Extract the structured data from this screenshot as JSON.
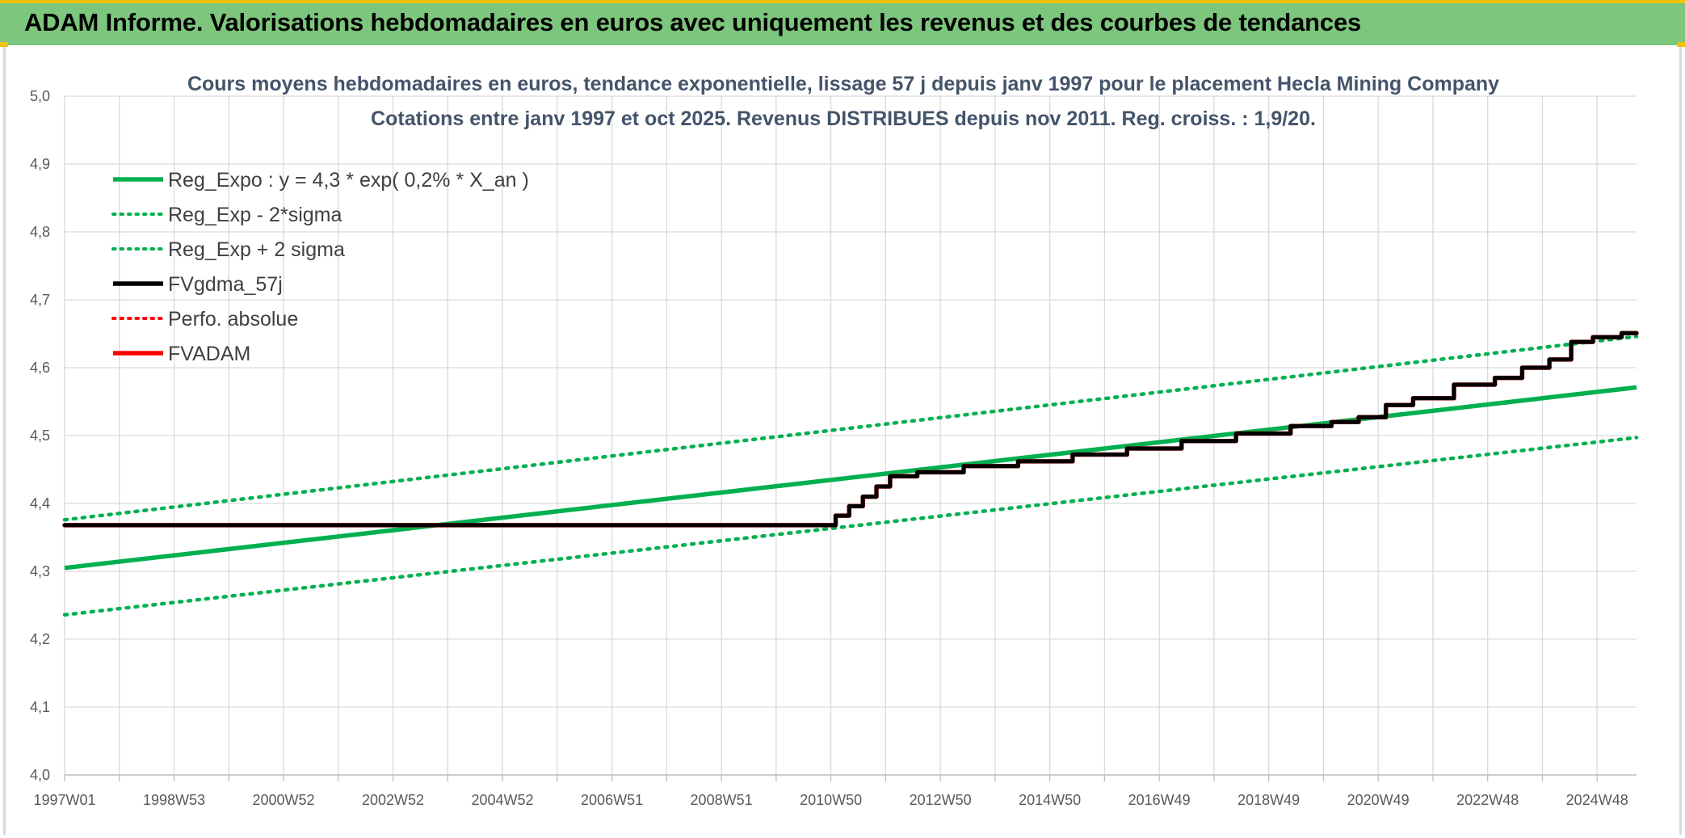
{
  "header": {
    "title": "ADAM Informe. Valorisations hebdomadaires en euros avec uniquement les revenus et des courbes de tendances"
  },
  "chart_data": {
    "type": "line",
    "title": "Cours moyens hebdomadaires en euros, tendance exponentielle, lissage 57 j depuis janv 1997 pour le placement Hecla Mining Company",
    "subtitle": "Cotations entre janv 1997 et oct 2025. Revenus DISTRIBUES depuis nov 2011. Reg. croiss. : 1,9/20.",
    "xlabel": "",
    "ylabel": "",
    "x_tick_labels": [
      "1997W01",
      "1998W53",
      "2000W52",
      "2002W52",
      "2004W52",
      "2006W51",
      "2008W51",
      "2010W50",
      "2012W50",
      "2014W50",
      "2016W49",
      "2018W49",
      "2020W49",
      "2022W48",
      "2024W48"
    ],
    "y_tick_labels": [
      "4,0",
      "4,1",
      "4,2",
      "4,3",
      "4,4",
      "4,5",
      "4,6",
      "4,7",
      "4,8",
      "4,9",
      "5,0"
    ],
    "ylim": [
      4.0,
      5.0
    ],
    "xlim": [
      1997.0,
      2025.85
    ],
    "grid": true,
    "legend_position": "top-left",
    "series": [
      {
        "name": "Reg_Expo : y = 4,3 * exp( 0,2% *  X_an )",
        "color": "#00b050",
        "style": "solid",
        "x": [
          1997.0,
          2025.85
        ],
        "y": [
          4.305,
          4.571
        ]
      },
      {
        "name": "Reg_Exp - 2*sigma",
        "color": "#00b050",
        "style": "dotted",
        "x": [
          1997.0,
          2025.85
        ],
        "y": [
          4.236,
          4.497
        ]
      },
      {
        "name": "Reg_Exp + 2 sigma",
        "color": "#00b050",
        "style": "dotted",
        "x": [
          1997.0,
          2025.85
        ],
        "y": [
          4.376,
          4.646
        ]
      },
      {
        "name": "FVgdma_57j",
        "color": "#000000",
        "style": "solid",
        "x": [
          1997.0,
          2011.0,
          2011.3,
          2011.5,
          2011.8,
          2012.0,
          2012.3,
          2013.0,
          2014.0,
          2015.0,
          2016.0,
          2017.0,
          2018.0,
          2019.0,
          2020.0,
          2020.5,
          2021.0,
          2021.5,
          2022.0,
          2023.0,
          2023.5,
          2024.0,
          2024.5,
          2024.8,
          2025.3,
          2025.85
        ],
        "y": [
          4.368,
          4.368,
          4.382,
          4.396,
          4.41,
          4.425,
          4.44,
          4.446,
          4.455,
          4.462,
          4.472,
          4.481,
          4.492,
          4.503,
          4.514,
          4.52,
          4.527,
          4.545,
          4.555,
          4.575,
          4.585,
          4.6,
          4.612,
          4.638,
          4.645,
          4.651
        ]
      },
      {
        "name": "Perfo. absolue",
        "color": "#ff0000",
        "style": "dotted",
        "x": [
          1997.0,
          2011.0,
          2011.3,
          2011.5,
          2011.8,
          2012.0,
          2012.3,
          2013.0,
          2014.0,
          2015.0,
          2016.0,
          2017.0,
          2018.0,
          2019.0,
          2020.0,
          2020.5,
          2021.0,
          2021.5,
          2022.0,
          2023.0,
          2023.5,
          2024.0,
          2024.5,
          2024.8,
          2025.3,
          2025.85
        ],
        "y": [
          4.368,
          4.368,
          4.382,
          4.396,
          4.41,
          4.425,
          4.44,
          4.446,
          4.455,
          4.462,
          4.472,
          4.481,
          4.492,
          4.503,
          4.514,
          4.52,
          4.527,
          4.545,
          4.555,
          4.575,
          4.585,
          4.6,
          4.612,
          4.638,
          4.645,
          4.651
        ]
      },
      {
        "name": "FVADAM",
        "color": "#ff0000",
        "style": "solid",
        "x": [
          1997.0,
          2011.0,
          2011.3,
          2011.5,
          2011.8,
          2012.0,
          2012.3,
          2013.0,
          2014.0,
          2015.0,
          2016.0,
          2017.0,
          2018.0,
          2019.0,
          2020.0,
          2020.5,
          2021.0,
          2021.5,
          2022.0,
          2023.0,
          2023.5,
          2024.0,
          2024.5,
          2024.8,
          2025.3,
          2025.85
        ],
        "y": [
          4.368,
          4.368,
          4.382,
          4.396,
          4.41,
          4.425,
          4.44,
          4.446,
          4.455,
          4.462,
          4.472,
          4.481,
          4.492,
          4.503,
          4.514,
          4.52,
          4.527,
          4.545,
          4.555,
          4.575,
          4.585,
          4.6,
          4.612,
          4.638,
          4.645,
          4.651
        ]
      }
    ]
  }
}
